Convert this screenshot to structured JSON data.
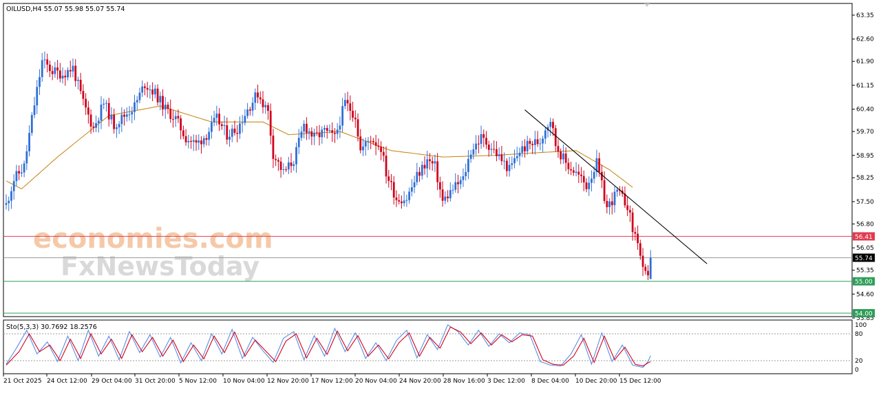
{
  "header": {
    "symbol_line": "OILUSD,H4  55.07 55.98 55.07 55.74",
    "stoch_line": "Sto(5,3,3) 30.7692 18.2576"
  },
  "watermark": {
    "line1": "economies.com",
    "line2": "FxNewsToday"
  },
  "colors": {
    "bull": "#2f6fd6",
    "bear": "#d0021b",
    "ma": "#c98a1e",
    "resistance": "#e23b4f",
    "support": "#2e9e58",
    "trend": "#000000",
    "stoch_main": "#5a8ee6",
    "stoch_signal": "#d0021b"
  },
  "chart_data": [
    {
      "type": "candlestick",
      "title": "OILUSD,H4",
      "ylim": [
        53.85,
        63.6
      ],
      "y_ticks": [
        "63.35",
        "62.60",
        "61.90",
        "61.15",
        "60.40",
        "59.70",
        "58.95",
        "58.25",
        "57.50",
        "56.80",
        "56.05",
        "55.35",
        "54.60",
        "53.85"
      ],
      "x_ticks": [
        "21 Oct 2025",
        "24 Oct 12:00",
        "29 Oct 04:00",
        "31 Oct 20:00",
        "5 Nov 12:00",
        "10 Nov 04:00",
        "12 Nov 20:00",
        "17 Nov 12:00",
        "20 Nov 04:00",
        "24 Nov 20:00",
        "28 Nov 16:00",
        "3 Dec 12:00",
        "8 Dec 04:00",
        "10 Dec 20:00",
        "15 Dec 12:00"
      ],
      "anchors": [
        [
          0,
          57.4
        ],
        [
          3,
          58.2
        ],
        [
          7,
          58.6
        ],
        [
          10,
          60.1
        ],
        [
          14,
          61.9
        ],
        [
          18,
          61.6
        ],
        [
          22,
          61.5
        ],
        [
          26,
          61.7
        ],
        [
          30,
          60.6
        ],
        [
          34,
          59.8
        ],
        [
          38,
          60.6
        ],
        [
          42,
          59.9
        ],
        [
          46,
          60.2
        ],
        [
          50,
          60.5
        ],
        [
          54,
          61.2
        ],
        [
          58,
          60.9
        ],
        [
          62,
          60.4
        ],
        [
          66,
          60.1
        ],
        [
          70,
          59.5
        ],
        [
          74,
          59.3
        ],
        [
          78,
          59.6
        ],
        [
          82,
          60.1
        ],
        [
          86,
          59.6
        ],
        [
          90,
          59.8
        ],
        [
          94,
          60.4
        ],
        [
          98,
          60.9
        ],
        [
          102,
          60.3
        ],
        [
          104,
          59.0
        ],
        [
          108,
          58.4
        ],
        [
          112,
          58.8
        ],
        [
          116,
          59.9
        ],
        [
          120,
          59.5
        ],
        [
          124,
          59.7
        ],
        [
          128,
          59.5
        ],
        [
          132,
          60.6
        ],
        [
          136,
          60.2
        ],
        [
          138,
          59.1
        ],
        [
          142,
          59.5
        ],
        [
          146,
          59.2
        ],
        [
          148,
          58.4
        ],
        [
          152,
          57.6
        ],
        [
          156,
          57.6
        ],
        [
          160,
          58.3
        ],
        [
          164,
          58.8
        ],
        [
          167,
          58.6
        ],
        [
          170,
          57.5
        ],
        [
          174,
          57.9
        ],
        [
          178,
          58.2
        ],
        [
          181,
          59.1
        ],
        [
          185,
          59.5
        ],
        [
          189,
          59.2
        ],
        [
          193,
          58.8
        ],
        [
          196,
          58.5
        ],
        [
          200,
          59.1
        ],
        [
          204,
          59.3
        ],
        [
          208,
          59.4
        ],
        [
          210,
          59.8
        ],
        [
          212,
          60.1
        ],
        [
          214,
          59.3
        ],
        [
          218,
          58.7
        ],
        [
          222,
          58.4
        ],
        [
          226,
          58.0
        ],
        [
          230,
          58.7
        ],
        [
          234,
          57.3
        ],
        [
          238,
          57.8
        ],
        [
          242,
          57.4
        ],
        [
          244,
          56.6
        ],
        [
          246,
          56.3
        ],
        [
          248,
          55.3
        ],
        [
          250,
          55.05
        ],
        [
          251,
          55.74
        ]
      ],
      "last_candle": {
        "open": 55.07,
        "high": 55.98,
        "low": 55.07,
        "close": 55.74
      },
      "moving_average": [
        [
          0,
          58.15
        ],
        [
          6,
          57.9
        ],
        [
          20,
          58.9
        ],
        [
          40,
          60.2
        ],
        [
          60,
          60.5
        ],
        [
          80,
          60.0
        ],
        [
          100,
          60.0
        ],
        [
          110,
          59.6
        ],
        [
          130,
          59.7
        ],
        [
          150,
          59.1
        ],
        [
          170,
          58.9
        ],
        [
          190,
          58.95
        ],
        [
          210,
          59.05
        ],
        [
          222,
          59.1
        ],
        [
          235,
          58.5
        ],
        [
          244,
          57.95
        ]
      ],
      "trendline": {
        "from": [
          202,
          60.38
        ],
        "to": [
          273,
          55.55
        ]
      },
      "horizontal_levels": [
        {
          "value": 56.41,
          "label": "56.41",
          "role": "resistance"
        },
        {
          "value": 55.74,
          "label": "55.74",
          "role": "current"
        },
        {
          "value": 55.0,
          "label": "55.00",
          "role": "support"
        },
        {
          "value": 54.0,
          "label": "54.00",
          "role": "support"
        }
      ]
    },
    {
      "type": "line",
      "title": "Sto(5,3,3) 30.7692 18.2576",
      "ylim": [
        0,
        100
      ],
      "y_ticks": [
        "100",
        "80",
        "20",
        "0"
      ],
      "levels": [
        80,
        20
      ],
      "series": [
        {
          "anchors": [
            [
              0,
              12
            ],
            [
              4,
              48
            ],
            [
              8,
              88
            ],
            [
              12,
              35
            ],
            [
              16,
              62
            ],
            [
              20,
              18
            ],
            [
              24,
              75
            ],
            [
              28,
              20
            ],
            [
              32,
              88
            ],
            [
              36,
              30
            ],
            [
              40,
              75
            ],
            [
              44,
              22
            ],
            [
              48,
              85
            ],
            [
              52,
              38
            ],
            [
              56,
              78
            ],
            [
              60,
              28
            ],
            [
              64,
              72
            ],
            [
              68,
              15
            ],
            [
              72,
              60
            ],
            [
              76,
              20
            ],
            [
              80,
              80
            ],
            [
              84,
              35
            ],
            [
              88,
              90
            ],
            [
              92,
              25
            ],
            [
              96,
              72
            ],
            [
              100,
              42
            ],
            [
              104,
              16
            ],
            [
              108,
              70
            ],
            [
              112,
              85
            ],
            [
              116,
              22
            ],
            [
              120,
              76
            ],
            [
              124,
              30
            ],
            [
              128,
              92
            ],
            [
              132,
              40
            ],
            [
              136,
              82
            ],
            [
              140,
              25
            ],
            [
              144,
              60
            ],
            [
              148,
              20
            ],
            [
              152,
              65
            ],
            [
              156,
              88
            ],
            [
              160,
              26
            ],
            [
              164,
              78
            ],
            [
              168,
              45
            ],
            [
              172,
              100
            ],
            [
              176,
              85
            ],
            [
              180,
              55
            ],
            [
              184,
              88
            ],
            [
              188,
              52
            ],
            [
              192,
              80
            ],
            [
              196,
              60
            ],
            [
              200,
              82
            ],
            [
              204,
              78
            ],
            [
              208,
              18
            ],
            [
              212,
              10
            ],
            [
              216,
              8
            ],
            [
              220,
              35
            ],
            [
              224,
              78
            ],
            [
              228,
              12
            ],
            [
              232,
              82
            ],
            [
              236,
              18
            ],
            [
              240,
              55
            ],
            [
              244,
              10
            ],
            [
              248,
              5
            ],
            [
              250,
              18
            ],
            [
              251,
              31
            ]
          ]
        },
        {
          "anchors": [
            [
              0,
              10
            ],
            [
              5,
              40
            ],
            [
              9,
              80
            ],
            [
              13,
              40
            ],
            [
              17,
              55
            ],
            [
              21,
              20
            ],
            [
              25,
              68
            ],
            [
              29,
              25
            ],
            [
              33,
              80
            ],
            [
              37,
              35
            ],
            [
              41,
              68
            ],
            [
              45,
              25
            ],
            [
              49,
              78
            ],
            [
              53,
              40
            ],
            [
              57,
              72
            ],
            [
              61,
              30
            ],
            [
              65,
              66
            ],
            [
              69,
              18
            ],
            [
              73,
              55
            ],
            [
              77,
              24
            ],
            [
              81,
              75
            ],
            [
              85,
              38
            ],
            [
              89,
              84
            ],
            [
              93,
              30
            ],
            [
              97,
              66
            ],
            [
              101,
              42
            ],
            [
              105,
              18
            ],
            [
              109,
              64
            ],
            [
              113,
              80
            ],
            [
              117,
              26
            ],
            [
              121,
              70
            ],
            [
              125,
              34
            ],
            [
              129,
              86
            ],
            [
              133,
              42
            ],
            [
              137,
              76
            ],
            [
              141,
              30
            ],
            [
              145,
              55
            ],
            [
              149,
              24
            ],
            [
              153,
              60
            ],
            [
              157,
              82
            ],
            [
              161,
              30
            ],
            [
              165,
              72
            ],
            [
              169,
              48
            ],
            [
              173,
              95
            ],
            [
              177,
              84
            ],
            [
              181,
              58
            ],
            [
              185,
              82
            ],
            [
              189,
              55
            ],
            [
              193,
              78
            ],
            [
              197,
              62
            ],
            [
              201,
              78
            ],
            [
              205,
              75
            ],
            [
              209,
              22
            ],
            [
              213,
              12
            ],
            [
              217,
              10
            ],
            [
              221,
              30
            ],
            [
              225,
              70
            ],
            [
              229,
              16
            ],
            [
              233,
              75
            ],
            [
              237,
              22
            ],
            [
              241,
              50
            ],
            [
              245,
              12
            ],
            [
              248,
              8
            ],
            [
              250,
              15
            ],
            [
              251,
              18
            ]
          ]
        }
      ]
    }
  ]
}
